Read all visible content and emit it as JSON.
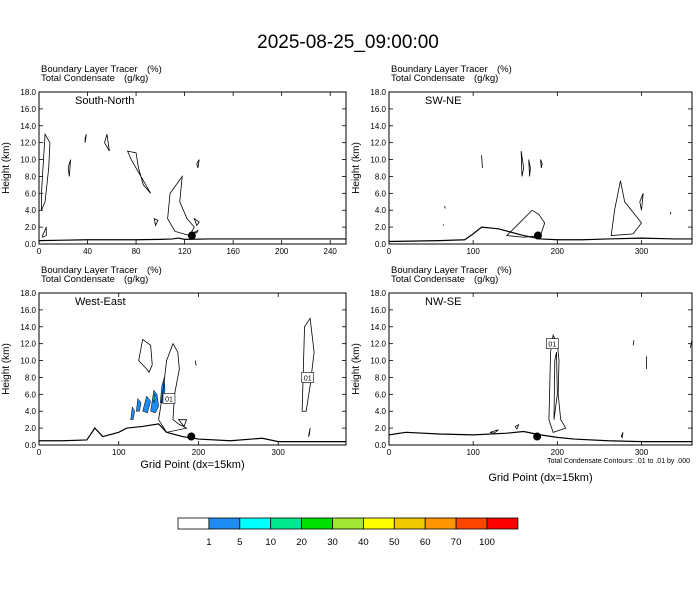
{
  "title": "2025-08-25_09:00:00",
  "footer_note": "Total Condensate Contours: .01 to .01 by .000",
  "colors": {
    "contour": "#000000",
    "tracer_fill": "#1e8cf0",
    "tracer_light": "#00ffff"
  },
  "chart_data": [
    {
      "type": "contour",
      "name": "South-North",
      "subtitle_line1": "Boundary Layer Tracer",
      "subtitle_unit1": "(%)",
      "subtitle_line2": "Total Condensate",
      "subtitle_unit2": "(g/kg)",
      "xlabel": "",
      "ylabel": "Height (km)",
      "xlim": [
        0,
        253
      ],
      "ylim": [
        0,
        18
      ],
      "xticks": [
        0,
        40,
        80,
        120,
        160,
        200,
        240
      ],
      "yticks": [
        "0.0",
        "2.0",
        "4.0",
        "6.0",
        "8.0",
        "10.0",
        "12.0",
        "14.0",
        "16.0",
        "18.0"
      ],
      "marker": {
        "x": 126,
        "y": 1.0
      },
      "contour_labels": [],
      "terrain": [
        [
          0,
          0.4
        ],
        [
          20,
          0.45
        ],
        [
          40,
          0.5
        ],
        [
          60,
          0.5
        ],
        [
          80,
          0.5
        ],
        [
          100,
          0.55
        ],
        [
          110,
          0.6
        ],
        [
          115,
          0.7
        ],
        [
          120,
          0.55
        ],
        [
          140,
          0.6
        ],
        [
          160,
          0.6
        ],
        [
          180,
          0.6
        ],
        [
          200,
          0.6
        ],
        [
          220,
          0.6
        ],
        [
          240,
          0.6
        ],
        [
          253,
          0.6
        ]
      ]
    },
    {
      "type": "contour",
      "name": "SW-NE",
      "subtitle_line1": "Boundary Layer Tracer",
      "subtitle_unit1": "(%)",
      "subtitle_line2": "Total Condensate",
      "subtitle_unit2": "(g/kg)",
      "xlabel": "",
      "ylabel": "Height (km)",
      "xlim": [
        0,
        360
      ],
      "ylim": [
        0,
        18
      ],
      "xticks": [
        0,
        100,
        200,
        300
      ],
      "yticks": [
        "0.0",
        "2.0",
        "4.0",
        "6.0",
        "8.0",
        "10.0",
        "12.0",
        "14.0",
        "16.0",
        "18.0"
      ],
      "marker": {
        "x": 177,
        "y": 1.0
      },
      "contour_labels": [],
      "terrain": [
        [
          0,
          0.3
        ],
        [
          60,
          0.4
        ],
        [
          90,
          0.5
        ],
        [
          100,
          1.2
        ],
        [
          110,
          2.0
        ],
        [
          130,
          1.8
        ],
        [
          160,
          1.0
        ],
        [
          180,
          0.6
        ],
        [
          200,
          0.5
        ],
        [
          230,
          0.5
        ],
        [
          260,
          0.6
        ],
        [
          300,
          0.7
        ],
        [
          340,
          0.6
        ],
        [
          360,
          0.6
        ]
      ]
    },
    {
      "type": "contour",
      "name": "West-East",
      "subtitle_line1": "Boundary Layer Tracer",
      "subtitle_unit1": "(%)",
      "subtitle_line2": "Total Condensate",
      "subtitle_unit2": "(g/kg)",
      "xlabel": "Grid Point (dx=15km)",
      "ylabel": "Height (km)",
      "xlim": [
        0,
        385
      ],
      "ylim": [
        0,
        18
      ],
      "xticks": [
        0,
        100,
        200,
        300
      ],
      "yticks": [
        "0.0",
        "2.0",
        "4.0",
        "6.0",
        "8.0",
        "10.0",
        "12.0",
        "14.0",
        "16.0",
        "18.0"
      ],
      "marker": {
        "x": 191,
        "y": 1.0
      },
      "contour_labels": [
        {
          "text": "01",
          "x": 163,
          "y": 5.5
        },
        {
          "text": "01",
          "x": 337,
          "y": 8.0
        }
      ],
      "terrain": [
        [
          0,
          0.5
        ],
        [
          30,
          0.5
        ],
        [
          60,
          0.6
        ],
        [
          70,
          2.0
        ],
        [
          80,
          1.0
        ],
        [
          100,
          1.5
        ],
        [
          110,
          2.0
        ],
        [
          130,
          2.2
        ],
        [
          150,
          2.5
        ],
        [
          160,
          1.5
        ],
        [
          180,
          1.0
        ],
        [
          200,
          0.7
        ],
        [
          240,
          0.5
        ],
        [
          280,
          0.8
        ],
        [
          300,
          0.4
        ],
        [
          385,
          0.4
        ]
      ]
    },
    {
      "type": "contour",
      "name": "NW-SE",
      "subtitle_line1": "Boundary Layer Tracer",
      "subtitle_unit1": "(%)",
      "subtitle_line2": "Total Condensate",
      "subtitle_unit2": "(g/kg)",
      "xlabel": "Grid Point (dx=15km)",
      "ylabel": "Height (km)",
      "xlim": [
        0,
        360
      ],
      "ylim": [
        0,
        18
      ],
      "xticks": [
        0,
        100,
        200,
        300
      ],
      "yticks": [
        "0.0",
        "2.0",
        "4.0",
        "6.0",
        "8.0",
        "10.0",
        "12.0",
        "14.0",
        "16.0",
        "18.0"
      ],
      "marker": {
        "x": 176,
        "y": 1.0
      },
      "contour_labels": [
        {
          "text": "01",
          "x": 194,
          "y": 12.0
        }
      ],
      "terrain": [
        [
          0,
          1.2
        ],
        [
          20,
          1.5
        ],
        [
          60,
          1.3
        ],
        [
          100,
          1.2
        ],
        [
          140,
          1.4
        ],
        [
          160,
          1.6
        ],
        [
          180,
          1.2
        ],
        [
          200,
          0.9
        ],
        [
          220,
          0.7
        ],
        [
          260,
          0.5
        ],
        [
          300,
          0.4
        ],
        [
          360,
          0.4
        ]
      ]
    }
  ],
  "colorbar": {
    "labels": [
      "1",
      "5",
      "10",
      "20",
      "30",
      "40",
      "50",
      "60",
      "70",
      "100"
    ],
    "colors": [
      "#ffffff",
      "#1e8cf0",
      "#00ffff",
      "#00e890",
      "#00e000",
      "#a0e632",
      "#ffff00",
      "#f0c800",
      "#ff9600",
      "#ff4600",
      "#ff0000"
    ]
  }
}
